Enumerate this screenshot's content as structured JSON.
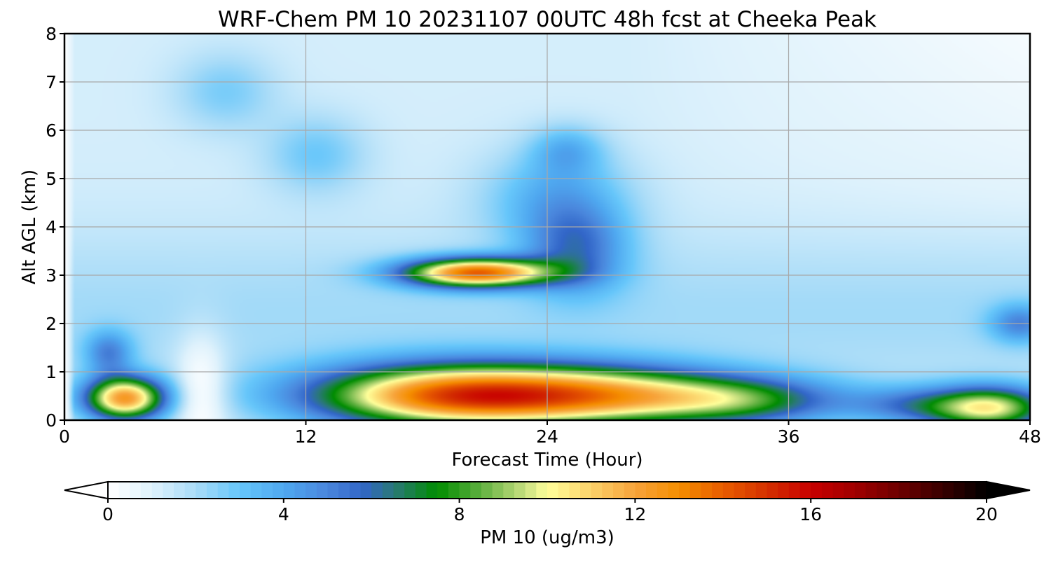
{
  "chart_data": {
    "type": "heatmap",
    "title": "WRF-Chem PM 10  20231107 00UTC 48h fcst at Cheeka Peak",
    "xlabel": "Forecast Time (Hour)",
    "ylabel": "Alt AGL (km)",
    "xlim": [
      0,
      48
    ],
    "ylim": [
      0,
      8
    ],
    "xticks": [
      0,
      12,
      24,
      36,
      48
    ],
    "yticks": [
      0,
      1,
      2,
      3,
      4,
      5,
      6,
      7,
      8
    ],
    "grid": true,
    "colorbar": {
      "label": "PM 10  (ug/m3)",
      "min": 0,
      "max": 20,
      "ticks": [
        0,
        4,
        8,
        12,
        16,
        20
      ],
      "extend": "both",
      "placement": "bottom",
      "colors": [
        {
          "value": 0,
          "color": "#ffffff"
        },
        {
          "value": 1,
          "color": "#dff2fc"
        },
        {
          "value": 2,
          "color": "#a9dcf8"
        },
        {
          "value": 3,
          "color": "#66c6fa"
        },
        {
          "value": 4,
          "color": "#4fa8f0"
        },
        {
          "value": 5,
          "color": "#4a86dc"
        },
        {
          "value": 5.8,
          "color": "#3266c8"
        },
        {
          "value": 6.5,
          "color": "#2a7878"
        },
        {
          "value": 7.5,
          "color": "#008c00"
        },
        {
          "value": 8.5,
          "color": "#60b040"
        },
        {
          "value": 9.5,
          "color": "#c8e080"
        },
        {
          "value": 10,
          "color": "#ffff9a"
        },
        {
          "value": 11,
          "color": "#fbd26a"
        },
        {
          "value": 12,
          "color": "#f7a33a"
        },
        {
          "value": 13,
          "color": "#f58e00"
        },
        {
          "value": 14,
          "color": "#e85c00"
        },
        {
          "value": 15,
          "color": "#d43000"
        },
        {
          "value": 16,
          "color": "#c80000"
        },
        {
          "value": 17,
          "color": "#a00000"
        },
        {
          "value": 18,
          "color": "#6e0000"
        },
        {
          "value": 19,
          "color": "#380000"
        },
        {
          "value": 20,
          "color": "#000000"
        }
      ]
    },
    "features": [
      {
        "x": 3,
        "y": 0.45,
        "sx": 2.0,
        "sy": 0.45,
        "amp": 10.8
      },
      {
        "x": 2.2,
        "y": 1.4,
        "sx": 1.2,
        "sy": 0.45,
        "amp": 3.2
      },
      {
        "x": 20,
        "y": 0.5,
        "sx": 7.5,
        "sy": 0.65,
        "amp": 13.0
      },
      {
        "x": 28,
        "y": 0.5,
        "sx": 6,
        "sy": 0.6,
        "amp": 6.0
      },
      {
        "x": 34,
        "y": 0.4,
        "sx": 5,
        "sy": 0.5,
        "amp": 5.0
      },
      {
        "x": 46,
        "y": 0.25,
        "sx": 3,
        "sy": 0.45,
        "amp": 8.5
      },
      {
        "x": 42,
        "y": 0.3,
        "sx": 3,
        "sy": 0.4,
        "amp": 3.0
      },
      {
        "x": 20.5,
        "y": 3.05,
        "sx": 3.6,
        "sy": 0.3,
        "amp": 12.0
      },
      {
        "x": 25.5,
        "y": 3.5,
        "sx": 2.5,
        "sy": 0.9,
        "amp": 3.5
      },
      {
        "x": 24.5,
        "y": 4.6,
        "sx": 3.5,
        "sy": 1.0,
        "amp": 2.5
      },
      {
        "x": 25,
        "y": 5.6,
        "sx": 1.8,
        "sy": 0.5,
        "amp": 2.0
      },
      {
        "x": 12.5,
        "y": 5.5,
        "sx": 2.5,
        "sy": 0.8,
        "amp": 1.7
      },
      {
        "x": 8,
        "y": 6.8,
        "sx": 2.5,
        "sy": 0.8,
        "amp": 1.5
      },
      {
        "x": 47.5,
        "y": 2.0,
        "sx": 1.5,
        "sy": 0.4,
        "amp": 3.0
      }
    ]
  }
}
